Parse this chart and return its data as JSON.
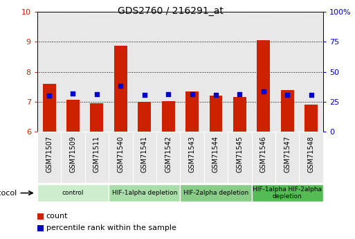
{
  "title": "GDS2760 / 216291_at",
  "samples": [
    "GSM71507",
    "GSM71509",
    "GSM71511",
    "GSM71540",
    "GSM71541",
    "GSM71542",
    "GSM71543",
    "GSM71544",
    "GSM71545",
    "GSM71546",
    "GSM71547",
    "GSM71548"
  ],
  "bar_values": [
    7.6,
    7.05,
    6.95,
    8.88,
    6.98,
    7.02,
    7.35,
    7.2,
    7.15,
    9.05,
    7.38,
    6.9
  ],
  "dot_values": [
    7.2,
    7.28,
    7.25,
    7.52,
    7.22,
    7.25,
    7.25,
    7.22,
    7.25,
    7.35,
    7.22,
    7.22
  ],
  "ylim_left": [
    6,
    10
  ],
  "ylim_right": [
    0,
    100
  ],
  "yticks_left": [
    6,
    7,
    8,
    9,
    10
  ],
  "yticks_right": [
    0,
    25,
    50,
    75,
    100
  ],
  "bar_color": "#CC2200",
  "dot_color": "#0000CC",
  "bar_width": 0.55,
  "groups": [
    {
      "label": "control",
      "start": 0,
      "end": 3,
      "color": "#CCEECC"
    },
    {
      "label": "HIF-1alpha depletion",
      "start": 3,
      "end": 6,
      "color": "#AADDAA"
    },
    {
      "label": "HIF-2alpha depletion",
      "start": 6,
      "end": 9,
      "color": "#88CC88"
    },
    {
      "label": "HIF-1alpha HIF-2alpha\ndepletion",
      "start": 9,
      "end": 12,
      "color": "#55BB55"
    }
  ],
  "protocol_label": "protocol",
  "legend_count_label": "count",
  "legend_pct_label": "percentile rank within the sample",
  "tick_label_color_left": "#CC2200",
  "tick_label_color_right": "#0000CC",
  "cell_bg_color": "#E8E8E8",
  "plot_bg_color": "#FFFFFF"
}
